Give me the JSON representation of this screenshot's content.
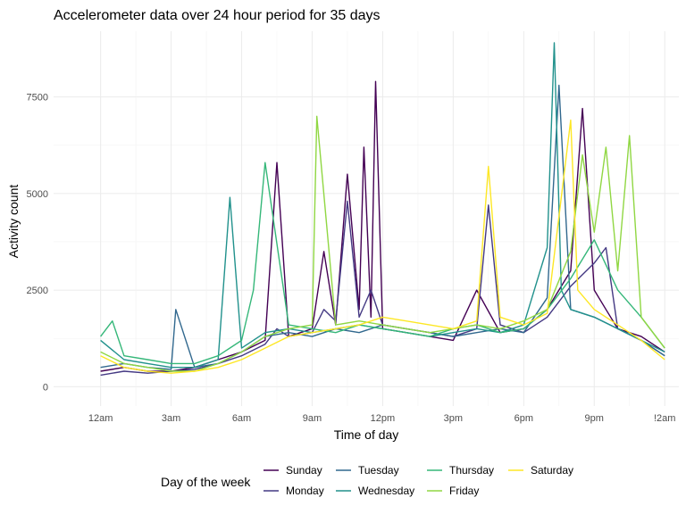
{
  "chart_data": {
    "type": "line",
    "title": "Accelerometer data over 24 hour period for 35 days",
    "xlabel": "Time of day",
    "ylabel": "Activity count",
    "x_unit": "hours since midnight",
    "xlim": [
      -2,
      24.6
    ],
    "ylim": [
      -500,
      9200
    ],
    "x_ticks": [
      0,
      3,
      6,
      9,
      12,
      15,
      18,
      21,
      24
    ],
    "x_tick_labels": [
      "12am",
      "3am",
      "6am",
      "9am",
      "12pm",
      "3pm",
      "6pm",
      "9pm",
      "!2am"
    ],
    "y_ticks": [
      0,
      2500,
      5000,
      7500
    ],
    "y_tick_labels": [
      "0",
      "2500",
      "5000",
      "7500"
    ],
    "grid": true,
    "legend": {
      "title": "Day of the week",
      "position": "bottom"
    },
    "series": [
      {
        "name": "Sunday",
        "color": "#440154",
        "x": [
          0,
          1,
          2,
          3,
          4,
          5,
          6,
          7,
          7.5,
          8,
          9,
          9.5,
          10,
          10.5,
          11,
          11.2,
          11.5,
          11.7,
          12,
          13,
          14,
          15,
          16,
          17,
          18,
          19,
          20,
          20.5,
          21,
          21.5,
          22,
          23,
          24
        ],
        "y": [
          400,
          500,
          400,
          400,
          500,
          700,
          900,
          1200,
          5800,
          1300,
          1500,
          3500,
          1600,
          5500,
          2000,
          6200,
          1800,
          7900,
          1500,
          1400,
          1300,
          1200,
          2500,
          1400,
          1500,
          2000,
          3000,
          7200,
          2500,
          2000,
          1500,
          1300,
          900
        ]
      },
      {
        "name": "Monday",
        "color": "#443983",
        "x": [
          0,
          1,
          2,
          3,
          4,
          5,
          6,
          7,
          7.5,
          8,
          9,
          9.5,
          10,
          10.5,
          11,
          11.5,
          12,
          13,
          14,
          15,
          16,
          16.5,
          17,
          18,
          19,
          20,
          21,
          21.5,
          22,
          23,
          24
        ],
        "y": [
          300,
          400,
          350,
          400,
          450,
          600,
          800,
          1100,
          1500,
          1300,
          1400,
          2000,
          1700,
          4800,
          1800,
          2500,
          1600,
          1500,
          1400,
          1300,
          1500,
          4700,
          1600,
          1400,
          1800,
          2600,
          3200,
          3600,
          1500,
          1200,
          800
        ]
      },
      {
        "name": "Tuesday",
        "color": "#31688e",
        "x": [
          0,
          1,
          2,
          3,
          3.2,
          4,
          5,
          6,
          7,
          8,
          9,
          10,
          11,
          12,
          13,
          14,
          15,
          16,
          17,
          18,
          19,
          19.5,
          20,
          21,
          22,
          23,
          24
        ],
        "y": [
          500,
          600,
          500,
          450,
          2000,
          500,
          600,
          900,
          1300,
          1400,
          1300,
          1500,
          1400,
          1600,
          1500,
          1400,
          1300,
          1400,
          1500,
          1400,
          2300,
          7800,
          2000,
          1800,
          1500,
          1200,
          800
        ]
      },
      {
        "name": "Wednesday",
        "color": "#21918c",
        "x": [
          0,
          1,
          2,
          3,
          4,
          5,
          5.5,
          6,
          7,
          8,
          9,
          10,
          11,
          12,
          13,
          14,
          15,
          16,
          17,
          18,
          19,
          19.3,
          19.6,
          20,
          21,
          22,
          23,
          24
        ],
        "y": [
          1200,
          700,
          600,
          500,
          500,
          700,
          4900,
          1000,
          1400,
          1500,
          1400,
          1500,
          1600,
          1500,
          1400,
          1300,
          1400,
          1500,
          1400,
          1600,
          3600,
          8900,
          2500,
          2000,
          1800,
          1500,
          1200,
          900
        ]
      },
      {
        "name": "Thursday",
        "color": "#35b779",
        "x": [
          0,
          0.5,
          1,
          2,
          3,
          4,
          5,
          6,
          6.5,
          7,
          8,
          9,
          10,
          11,
          12,
          13,
          14,
          15,
          16,
          17,
          18,
          19,
          20,
          21,
          22,
          23,
          24
        ],
        "y": [
          1300,
          1700,
          800,
          700,
          600,
          600,
          800,
          1200,
          2500,
          5800,
          1600,
          1500,
          1400,
          1600,
          1500,
          1400,
          1300,
          1500,
          1600,
          1400,
          1500,
          2000,
          2800,
          3800,
          2500,
          1800,
          1000
        ]
      },
      {
        "name": "Friday",
        "color": "#90d743",
        "x": [
          0,
          1,
          2,
          3,
          4,
          5,
          6,
          7,
          8,
          9,
          9.2,
          10,
          11,
          12,
          13,
          14,
          15,
          16,
          17,
          18,
          19,
          20,
          20.5,
          21,
          21.5,
          22,
          22.5,
          23,
          24
        ],
        "y": [
          900,
          600,
          500,
          400,
          400,
          600,
          900,
          1300,
          1500,
          1600,
          7000,
          1600,
          1700,
          1600,
          1500,
          1400,
          1500,
          1600,
          1500,
          1700,
          2000,
          3500,
          6000,
          4000,
          6200,
          3000,
          6500,
          1800,
          1000
        ]
      },
      {
        "name": "Saturday",
        "color": "#fde725",
        "x": [
          0,
          1,
          2,
          3,
          4,
          5,
          6,
          7,
          8,
          9,
          10,
          11,
          12,
          13,
          14,
          15,
          16,
          16.5,
          17,
          18,
          19,
          20,
          20.3,
          21,
          22,
          23,
          24
        ],
        "y": [
          800,
          500,
          400,
          350,
          400,
          500,
          700,
          1000,
          1300,
          1400,
          1500,
          1600,
          1800,
          1700,
          1600,
          1500,
          1700,
          5700,
          1800,
          1600,
          1900,
          6900,
          2500,
          2000,
          1600,
          1200,
          700
        ]
      }
    ]
  }
}
